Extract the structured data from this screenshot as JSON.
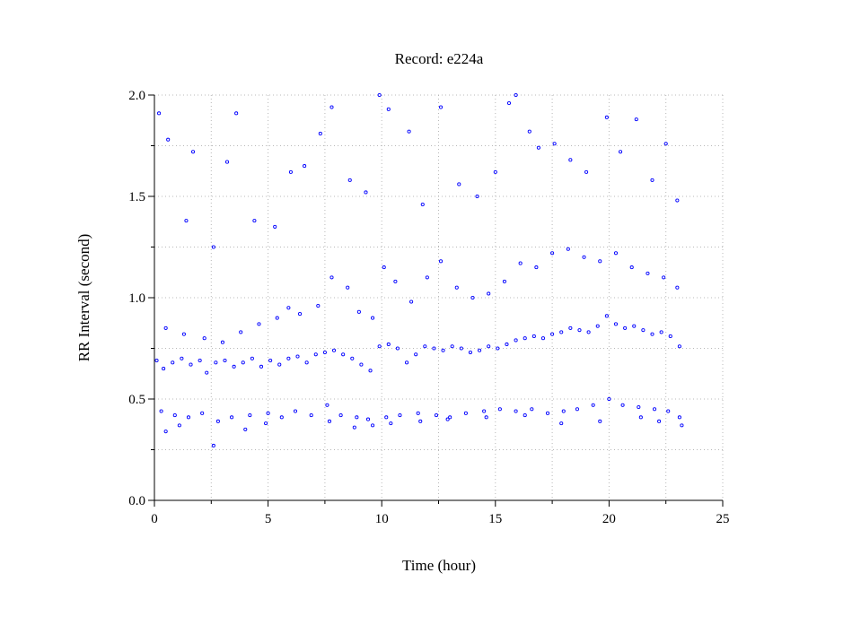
{
  "chart_data": {
    "type": "scatter",
    "title": "Record:  e224a",
    "xlabel": "Time (hour)",
    "ylabel": "RR Interval (second)",
    "xlim": [
      0,
      25
    ],
    "ylim": [
      0.0,
      2.0
    ],
    "x_ticks": [
      "0",
      "5",
      "10",
      "15",
      "20",
      "25"
    ],
    "y_ticks": [
      "0.0",
      "0.5",
      "1.0",
      "1.5",
      "2.0"
    ],
    "x_tick_values": [
      0,
      5,
      10,
      15,
      20,
      25
    ],
    "y_tick_values": [
      0.0,
      0.5,
      1.0,
      1.5,
      2.0
    ],
    "x_minor_ticks": [
      2.5,
      7.5,
      12.5,
      17.5,
      22.5
    ],
    "y_minor_ticks": [
      0.25,
      0.75,
      1.25,
      1.75
    ],
    "grid": true,
    "marker": "open-circle",
    "series_color": "#0000ff",
    "series": [
      {
        "x": [
          0.1,
          0.4,
          0.8,
          1.2,
          1.6,
          2.0,
          2.3,
          2.7,
          3.1,
          3.5,
          3.9,
          4.3,
          4.7,
          5.1,
          5.5,
          5.9,
          6.3,
          6.7,
          7.1,
          7.5,
          7.9,
          8.3,
          8.7,
          9.1,
          9.5,
          9.9,
          10.3,
          10.7,
          11.1,
          11.5,
          11.9,
          12.3,
          12.7,
          13.1,
          13.5,
          13.9,
          14.3,
          14.7,
          15.1,
          15.5,
          15.9,
          16.3,
          16.7,
          17.1,
          17.5,
          17.9,
          18.3,
          18.7,
          19.1,
          19.5,
          19.9,
          20.3,
          20.7,
          21.1,
          21.5,
          21.9,
          22.3,
          22.7,
          23.1
        ],
        "y": [
          0.69,
          0.65,
          0.68,
          0.7,
          0.67,
          0.69,
          0.63,
          0.68,
          0.69,
          0.66,
          0.68,
          0.7,
          0.66,
          0.69,
          0.67,
          0.7,
          0.71,
          0.68,
          0.72,
          0.73,
          0.74,
          0.72,
          0.7,
          0.67,
          0.64,
          0.76,
          0.77,
          0.75,
          0.68,
          0.72,
          0.76,
          0.75,
          0.74,
          0.76,
          0.75,
          0.73,
          0.74,
          0.76,
          0.75,
          0.77,
          0.79,
          0.8,
          0.81,
          0.8,
          0.82,
          0.83,
          0.85,
          0.84,
          0.83,
          0.86,
          0.91,
          0.87,
          0.85,
          0.86,
          0.84,
          0.82,
          0.83,
          0.81,
          0.76
        ]
      },
      {
        "x": [
          0.3,
          0.9,
          1.5,
          2.1,
          2.8,
          3.4,
          4.2,
          5.0,
          5.6,
          6.2,
          6.9,
          7.6,
          8.2,
          8.9,
          9.4,
          10.2,
          10.8,
          11.6,
          12.4,
          13.0,
          13.7,
          14.5,
          15.2,
          15.9,
          16.6,
          17.3,
          18.0,
          18.6,
          19.3,
          20.0,
          20.6,
          21.3,
          22.0,
          22.6,
          23.1
        ],
        "y": [
          0.44,
          0.42,
          0.41,
          0.43,
          0.39,
          0.41,
          0.42,
          0.43,
          0.41,
          0.44,
          0.42,
          0.47,
          0.42,
          0.41,
          0.4,
          0.41,
          0.42,
          0.43,
          0.42,
          0.41,
          0.43,
          0.44,
          0.45,
          0.44,
          0.45,
          0.43,
          0.44,
          0.45,
          0.47,
          0.5,
          0.47,
          0.46,
          0.45,
          0.44,
          0.41
        ]
      },
      {
        "x": [
          0.5,
          1.3,
          2.2,
          3.0,
          3.8,
          4.6,
          5.4,
          5.9,
          6.4,
          7.2,
          7.8,
          8.5,
          9.0,
          9.6,
          10.1,
          10.6,
          11.3,
          12.0,
          12.6,
          13.3,
          14.0,
          14.7,
          15.4,
          16.1,
          16.8,
          17.5,
          18.2,
          18.9,
          19.6,
          20.3,
          21.0,
          21.7,
          22.4,
          23.0
        ],
        "y": [
          0.85,
          0.82,
          0.8,
          0.78,
          0.83,
          0.87,
          0.9,
          0.95,
          0.92,
          0.96,
          1.1,
          1.05,
          0.93,
          0.9,
          1.15,
          1.08,
          0.98,
          1.1,
          1.18,
          1.05,
          1.0,
          1.02,
          1.08,
          1.17,
          1.15,
          1.22,
          1.24,
          1.2,
          1.18,
          1.22,
          1.15,
          1.12,
          1.1,
          1.05
        ]
      },
      {
        "x": [
          0.2,
          0.6,
          1.4,
          1.7,
          2.6,
          3.2,
          3.6,
          4.4,
          5.3,
          6.0,
          6.6,
          7.3,
          7.8,
          8.6,
          9.3,
          9.9,
          10.3,
          11.2,
          11.8,
          12.6,
          13.4,
          14.2,
          15.0,
          15.6,
          15.9,
          16.5,
          16.9,
          17.6,
          18.3,
          19.0,
          19.9,
          20.5,
          21.2,
          21.9,
          22.5,
          23.0
        ],
        "y": [
          1.91,
          1.78,
          1.38,
          1.72,
          1.25,
          1.67,
          1.91,
          1.38,
          1.35,
          1.62,
          1.65,
          1.81,
          1.94,
          1.58,
          1.52,
          2.0,
          1.93,
          1.82,
          1.46,
          1.94,
          1.56,
          1.5,
          1.62,
          1.96,
          2.0,
          1.82,
          1.74,
          1.76,
          1.68,
          1.62,
          1.89,
          1.72,
          1.88,
          1.58,
          1.76,
          1.48
        ]
      },
      {
        "x": [
          0.5,
          1.1,
          2.6,
          4.0,
          4.9,
          7.7,
          8.8,
          9.6,
          10.4,
          11.7,
          12.9,
          14.6,
          16.3,
          17.9,
          19.6,
          21.4,
          22.2,
          23.2
        ],
        "y": [
          0.34,
          0.37,
          0.27,
          0.35,
          0.38,
          0.39,
          0.36,
          0.37,
          0.38,
          0.39,
          0.4,
          0.41,
          0.42,
          0.38,
          0.39,
          0.41,
          0.39,
          0.37
        ]
      }
    ]
  }
}
